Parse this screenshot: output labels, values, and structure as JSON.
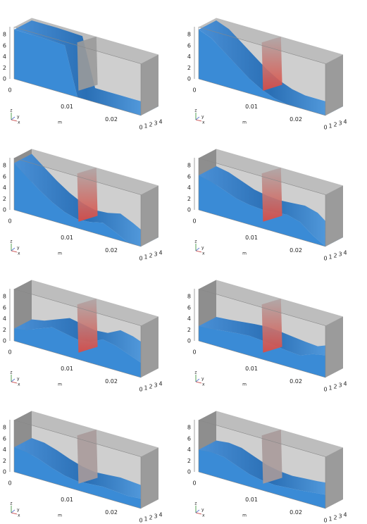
{
  "axes": {
    "z_ticks": [
      "0",
      "2",
      "4",
      "6",
      "8"
    ],
    "x_ticks": [
      "0",
      "0.01",
      "0.02"
    ],
    "x_unit": "m",
    "y_ticks": [
      "0",
      "1",
      "2",
      "3",
      "4"
    ],
    "triad": [
      "z",
      "y",
      "x"
    ]
  }
}
